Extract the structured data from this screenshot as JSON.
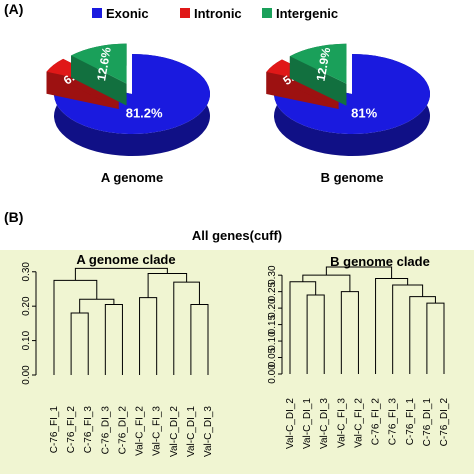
{
  "panel_a": {
    "label": "(A)",
    "legend": [
      {
        "name": "Exonic",
        "color": "#1a1adf"
      },
      {
        "name": "Intronic",
        "color": "#e01818"
      },
      {
        "name": "Intergenic",
        "color": "#1aa05a"
      }
    ]
  },
  "panel_b": {
    "label": "(B)",
    "title": "All genes(cuff)"
  },
  "chart_data": [
    {
      "type": "pie",
      "title": "A genome",
      "labels": [
        "Exonic",
        "Intronic",
        "Intergenic"
      ],
      "values": [
        81.2,
        6.2,
        12.6
      ],
      "value_labels": [
        "81.2%",
        "6.2%",
        "12.6%"
      ],
      "exploded": [
        "Intronic",
        "Intergenic"
      ],
      "style": "3d"
    },
    {
      "type": "pie",
      "title": "B genome",
      "labels": [
        "Exonic",
        "Intronic",
        "Intergenic"
      ],
      "values": [
        81.0,
        5.9,
        12.9
      ],
      "value_labels": [
        "81%",
        "5.9%",
        "12.9%"
      ],
      "exploded": [
        "Intronic",
        "Intergenic"
      ],
      "style": "3d"
    },
    {
      "type": "dendrogram",
      "title": "A genome clade",
      "leaves": [
        "C-76_FI_1",
        "C-76_FI_2",
        "C-76_FI_3",
        "C-76_DI_3",
        "C-76_DI_2",
        "Val-C_FI_2",
        "Val-C_FI_3",
        "Val-C_DI_2",
        "Val-C_DI_1",
        "Val-C_DI_3"
      ],
      "y_ticks": [
        "0.00",
        "0.10",
        "0.20",
        "0.30"
      ],
      "ylim": [
        0,
        0.34
      ],
      "merges": [
        {
          "left": "L:C-76_FI_2",
          "right": "L:C-76_FI_3",
          "height": 0.18
        },
        {
          "left": "L:C-76_DI_3",
          "right": "L:C-76_DI_2",
          "height": 0.205
        },
        {
          "left": "M:1",
          "right": "M:2",
          "height": 0.22
        },
        {
          "left": "L:C-76_FI_1",
          "right": "M:3",
          "height": 0.275
        },
        {
          "left": "L:Val-C_FI_2",
          "right": "L:Val-C_FI_3",
          "height": 0.225
        },
        {
          "left": "L:Val-C_DI_1",
          "right": "L:Val-C_DI_3",
          "height": 0.205
        },
        {
          "left": "L:Val-C_DI_2",
          "right": "M:6",
          "height": 0.27
        },
        {
          "left": "M:5",
          "right": "M:7",
          "height": 0.295
        },
        {
          "left": "M:4",
          "right": "M:8",
          "height": 0.31
        }
      ]
    },
    {
      "type": "dendrogram",
      "title": "B genome clade",
      "leaves": [
        "Val-C_DI_2",
        "Val-C_DI_1",
        "Val-C_DI_3",
        "Val-C_FI_3",
        "Val-C_FI_2",
        "C-76_FI_2",
        "C-76_FI_3",
        "C-76_FI_1",
        "C-76_DI_1",
        "C-76_DI_2"
      ],
      "y_ticks": [
        "0.00",
        "0.05",
        "0.10",
        "0.15",
        "0.20",
        "0.25",
        "0.30"
      ],
      "ylim": [
        0,
        0.34
      ],
      "merges": [
        {
          "left": "L:Val-C_DI_1",
          "right": "L:Val-C_DI_3",
          "height": 0.24
        },
        {
          "left": "L:Val-C_DI_2",
          "right": "M:1",
          "height": 0.28
        },
        {
          "left": "L:Val-C_FI_3",
          "right": "L:Val-C_FI_2",
          "height": 0.25
        },
        {
          "left": "M:2",
          "right": "M:3",
          "height": 0.3
        },
        {
          "left": "L:C-76_DI_1",
          "right": "L:C-76_DI_2",
          "height": 0.215
        },
        {
          "left": "L:C-76_FI_1",
          "right": "M:5",
          "height": 0.235
        },
        {
          "left": "L:C-76_FI_3",
          "right": "M:6",
          "height": 0.27
        },
        {
          "left": "L:C-76_FI_2",
          "right": "M:7",
          "height": 0.29
        },
        {
          "left": "M:4",
          "right": "M:8",
          "height": 0.325
        }
      ]
    }
  ]
}
